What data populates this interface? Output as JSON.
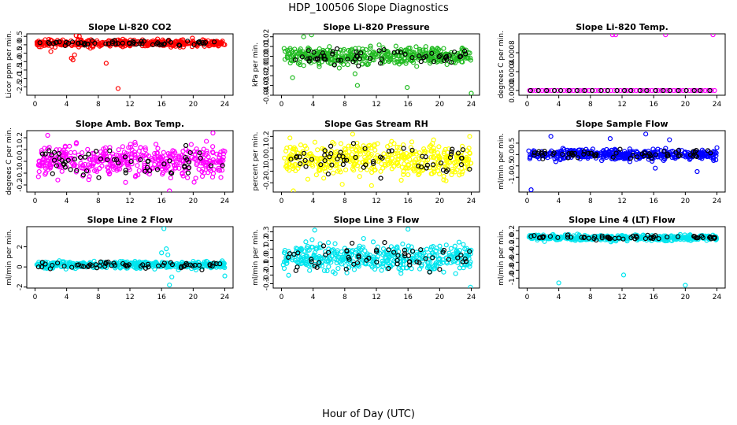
{
  "figure": {
    "title": "HDP_100506  Slope Diagnostics",
    "xlabel": "Hour of Day (UTC)"
  },
  "chart_data": [
    {
      "type": "scatter",
      "title": "Slope Li-820 CO2",
      "ylabel": "Licor ppm per min.",
      "color": "#ff0000",
      "xlim": [
        0,
        24
      ],
      "xticks": [
        0,
        4,
        8,
        12,
        16,
        20,
        24
      ],
      "ylim": [
        -3.0,
        0.65
      ],
      "yticks": [
        0.5,
        0,
        -0.5,
        -1,
        -1.5,
        -2,
        -2.5
      ],
      "ytick_labels": [
        "0.5",
        "0.0",
        "-0.5",
        "-1.0",
        "-1.5",
        "-2.0",
        "-2.5"
      ],
      "band": {
        "center": 0.1,
        "spread": 0.2
      },
      "outliers": [
        [
          2.0,
          -0.4
        ],
        [
          4.6,
          -0.8
        ],
        [
          4.8,
          -0.9
        ],
        [
          5.0,
          -0.6
        ],
        [
          7.0,
          -0.2
        ],
        [
          9.0,
          -1.1
        ],
        [
          10.5,
          -2.6
        ],
        [
          5.2,
          0.55
        ],
        [
          5.6,
          0.5
        ]
      ]
    },
    {
      "type": "scatter",
      "title": "Slope Li-820 Pressure",
      "ylabel": "kPa per min.",
      "color": "#22bb22",
      "xlim": [
        0,
        24
      ],
      "xticks": [
        0,
        4,
        8,
        12,
        16,
        20,
        24
      ],
      "ylim": [
        -0.04,
        0.023
      ],
      "yticks": [
        0.02,
        0.01,
        0,
        -0.01,
        -0.02,
        -0.03,
        -0.04
      ],
      "ytick_labels": [
        "0.02",
        "0.01",
        "0.00",
        "-0.01",
        "-0.02",
        "-0.03",
        "-0.04"
      ],
      "band": {
        "center": 0.0,
        "spread": 0.009
      },
      "outliers": [
        [
          2.8,
          0.02
        ],
        [
          3.8,
          0.022
        ],
        [
          9.3,
          -0.018
        ],
        [
          9.6,
          -0.03
        ],
        [
          15.9,
          -0.032
        ],
        [
          24.0,
          -0.038
        ],
        [
          1.4,
          -0.022
        ]
      ]
    },
    {
      "type": "scatter",
      "title": "Slope Li-820 Temp.",
      "ylabel": "degrees C per min.",
      "color": "#ff00ff",
      "xlim": [
        0,
        24
      ],
      "xticks": [
        0,
        4,
        8,
        12,
        16,
        20,
        24
      ],
      "ylim": [
        -0.0001,
        0.0012
      ],
      "yticks": [
        0,
        0.0004,
        0.0008
      ],
      "ytick_labels": [
        "0.0000",
        "0.0004",
        "0.0008"
      ],
      "flat": 0.0,
      "outliers": [
        [
          10.8,
          0.00118
        ],
        [
          11.2,
          0.00118
        ],
        [
          17.5,
          0.00118
        ],
        [
          23.5,
          0.00118
        ]
      ]
    },
    {
      "type": "scatter",
      "title": "Slope Amb. Box Temp.",
      "ylabel": "degrees C per min.",
      "color": "#ff00ff",
      "xlim": [
        0,
        24
      ],
      "xticks": [
        0,
        4,
        8,
        12,
        16,
        20,
        24
      ],
      "ylim": [
        -0.26,
        0.26
      ],
      "yticks": [
        -0.2,
        -0.1,
        0,
        0.1,
        0.2
      ],
      "ytick_labels": [
        "-0.2",
        "-0.1",
        "0.0",
        "0.1",
        "0.2"
      ],
      "band": {
        "center": 0.0,
        "spread": 0.13
      },
      "outliers": [
        [
          17.0,
          -0.25
        ],
        [
          22.5,
          0.24
        ],
        [
          1.6,
          0.22
        ]
      ]
    },
    {
      "type": "scatter",
      "title": "Slope Gas Stream RH",
      "ylabel": "percent per min.",
      "color": "#ffff00",
      "xlim": [
        0,
        24
      ],
      "xticks": [
        0,
        4,
        8,
        12,
        16,
        20,
        24
      ],
      "ylim": [
        -0.28,
        0.25
      ],
      "yticks": [
        -0.2,
        -0.1,
        0,
        0.1,
        0.2
      ],
      "ytick_labels": [
        "-0.2",
        "-0.1",
        "0.0",
        "0.1",
        "0.2"
      ],
      "band": {
        "center": 0.0,
        "spread": 0.15
      },
      "outliers": [
        [
          1.5,
          -0.27
        ],
        [
          9.0,
          0.22
        ],
        [
          23.8,
          0.2
        ]
      ]
    },
    {
      "type": "scatter",
      "title": "Slope Sample Flow",
      "ylabel": "ml/min per min.",
      "color": "#0000ff",
      "xlim": [
        0,
        24
      ],
      "xticks": [
        0,
        4,
        8,
        12,
        16,
        20,
        24
      ],
      "ylim": [
        -1.65,
        1.05
      ],
      "yticks": [
        -1,
        -0.5,
        0,
        0.5
      ],
      "ytick_labels": [
        "-1.0",
        "-0.5",
        "0.0",
        "0.5"
      ],
      "band": {
        "center": 0.0,
        "spread": 0.22
      },
      "outliers": [
        [
          0.5,
          -1.55
        ],
        [
          3.0,
          0.8
        ],
        [
          10.5,
          0.7
        ],
        [
          15.0,
          0.9
        ],
        [
          16.2,
          -0.6
        ],
        [
          21.5,
          -0.75
        ],
        [
          24.0,
          0.3
        ],
        [
          18.0,
          0.65
        ]
      ]
    },
    {
      "type": "scatter",
      "title": "Slope Line 2 Flow",
      "ylabel": "ml/min per min.",
      "color": "#00e5ee",
      "xlim": [
        0,
        24
      ],
      "xticks": [
        0,
        4,
        8,
        12,
        16,
        20,
        24
      ],
      "ylim": [
        -2.1,
        4.0
      ],
      "yticks": [
        -2,
        0,
        2
      ],
      "ytick_labels": [
        "-2",
        "0",
        "2"
      ],
      "band": {
        "center": 0.2,
        "spread": 0.35
      },
      "outliers": [
        [
          16.3,
          3.8
        ],
        [
          17.0,
          -1.8
        ],
        [
          16.6,
          1.8
        ],
        [
          16.8,
          1.2
        ],
        [
          17.3,
          -1.0
        ],
        [
          16.0,
          1.4
        ],
        [
          24.0,
          -0.9
        ]
      ]
    },
    {
      "type": "scatter",
      "title": "Slope Line 3 Flow",
      "ylabel": "ml/min per min.",
      "color": "#00e5ee",
      "xlim": [
        0,
        24
      ],
      "xticks": [
        0,
        4,
        8,
        12,
        16,
        20,
        24
      ],
      "ylim": [
        -0.35,
        0.36
      ],
      "yticks": [
        -0.3,
        -0.2,
        -0.1,
        0,
        0.1,
        0.2,
        0.3
      ],
      "ytick_labels": [
        "-0.3",
        "-0.2",
        "-0.1",
        "0.0",
        "0.1",
        "0.2",
        "0.3"
      ],
      "band": {
        "center": 0.0,
        "spread": 0.16
      },
      "outliers": [
        [
          16.0,
          0.33
        ],
        [
          23.9,
          -0.34
        ],
        [
          4.2,
          0.32
        ]
      ]
    },
    {
      "type": "scatter",
      "title": "Slope Line 4 (LT) Flow",
      "ylabel": "ml/min per min.",
      "color": "#00e5ee",
      "xlim": [
        0,
        24
      ],
      "xticks": [
        0,
        4,
        8,
        12,
        16,
        20,
        24
      ],
      "ylim": [
        -1.25,
        0.3
      ],
      "yticks": [
        -1,
        -0.8,
        -0.6,
        -0.4,
        -0.2,
        0,
        0.2
      ],
      "ytick_labels": [
        "-1.0",
        "-0.8",
        "-0.6",
        "-0.4",
        "-0.2",
        "0.0",
        "0.2"
      ],
      "band": {
        "center": 0.02,
        "spread": 0.07
      },
      "outliers": [
        [
          4.0,
          -1.12
        ],
        [
          12.2,
          -0.92
        ],
        [
          20.0,
          -1.18
        ]
      ]
    }
  ]
}
